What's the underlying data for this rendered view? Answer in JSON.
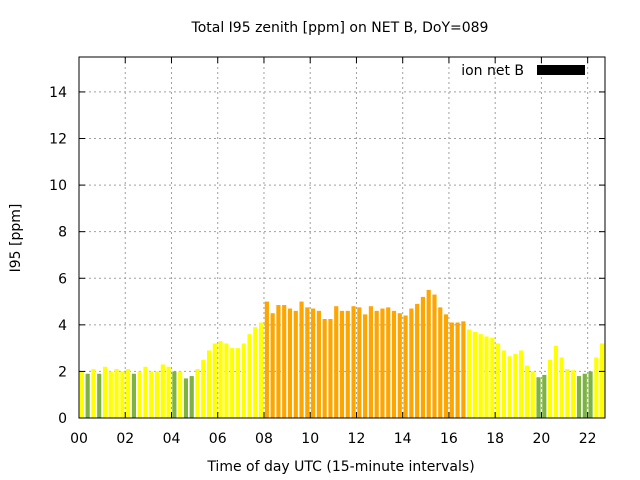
{
  "chart_data": {
    "type": "bar",
    "title": "Total I95 zenith [ppm] on NET B, DoY=089",
    "xlabel": "Time of day UTC (15-minute intervals)",
    "ylabel": "I95 [ppm]",
    "xlim": [
      0,
      22.75
    ],
    "ylim": [
      0,
      15.5
    ],
    "xticks": [
      0,
      2,
      4,
      6,
      8,
      10,
      12,
      14,
      16,
      18,
      20,
      22
    ],
    "xtick_labels": [
      "00",
      "02",
      "04",
      "06",
      "08",
      "10",
      "12",
      "14",
      "16",
      "18",
      "20",
      "22"
    ],
    "yticks": [
      0,
      2,
      4,
      6,
      8,
      10,
      12,
      14
    ],
    "grid": true,
    "legend": {
      "position": "top-right",
      "entries": [
        {
          "label": "ion net B",
          "color": "#000000"
        }
      ]
    },
    "bar_interval_hours": 0.25,
    "colors": {
      "green": "#7cb342",
      "yellow": "#ffff00",
      "orange": "#ffa500"
    },
    "values": [
      2.0,
      1.9,
      2.1,
      1.9,
      2.2,
      2.0,
      2.1,
      2.0,
      2.1,
      1.9,
      2.0,
      2.2,
      2.0,
      2.0,
      2.3,
      2.2,
      2.0,
      2.0,
      1.7,
      1.8,
      2.1,
      2.5,
      2.9,
      3.2,
      3.3,
      3.2,
      3.0,
      3.0,
      3.2,
      3.6,
      3.9,
      4.1,
      5.0,
      4.5,
      4.85,
      4.85,
      4.7,
      4.6,
      5.0,
      4.75,
      4.7,
      4.6,
      4.25,
      4.25,
      4.8,
      4.6,
      4.6,
      4.8,
      4.75,
      4.45,
      4.8,
      4.6,
      4.7,
      4.75,
      4.6,
      4.5,
      4.4,
      4.7,
      4.9,
      5.2,
      5.5,
      5.3,
      4.75,
      4.45,
      4.1,
      4.1,
      4.15,
      3.8,
      3.7,
      3.6,
      3.5,
      3.45,
      3.2,
      2.9,
      2.65,
      2.75,
      2.9,
      2.25,
      2.0,
      1.75,
      1.85,
      2.5,
      3.1,
      2.6,
      2.1,
      2.05,
      1.8,
      1.9,
      2.0,
      2.6,
      3.2
    ],
    "bar_colors": [
      "yellow",
      "green",
      "yellow",
      "green",
      "yellow",
      "yellow",
      "yellow",
      "yellow",
      "yellow",
      "green",
      "yellow",
      "yellow",
      "yellow",
      "yellow",
      "yellow",
      "yellow",
      "green",
      "yellow",
      "green",
      "green",
      "yellow",
      "yellow",
      "yellow",
      "yellow",
      "yellow",
      "yellow",
      "yellow",
      "yellow",
      "yellow",
      "yellow",
      "yellow",
      "yellow",
      "orange",
      "orange",
      "orange",
      "orange",
      "orange",
      "orange",
      "orange",
      "orange",
      "orange",
      "orange",
      "orange",
      "orange",
      "orange",
      "orange",
      "orange",
      "orange",
      "orange",
      "orange",
      "orange",
      "orange",
      "orange",
      "orange",
      "orange",
      "orange",
      "orange",
      "orange",
      "orange",
      "orange",
      "orange",
      "orange",
      "orange",
      "orange",
      "orange",
      "orange",
      "orange",
      "yellow",
      "yellow",
      "yellow",
      "yellow",
      "yellow",
      "yellow",
      "yellow",
      "yellow",
      "yellow",
      "yellow",
      "yellow",
      "yellow",
      "green",
      "green",
      "yellow",
      "yellow",
      "yellow",
      "yellow",
      "yellow",
      "green",
      "green",
      "green",
      "yellow",
      "yellow"
    ]
  }
}
